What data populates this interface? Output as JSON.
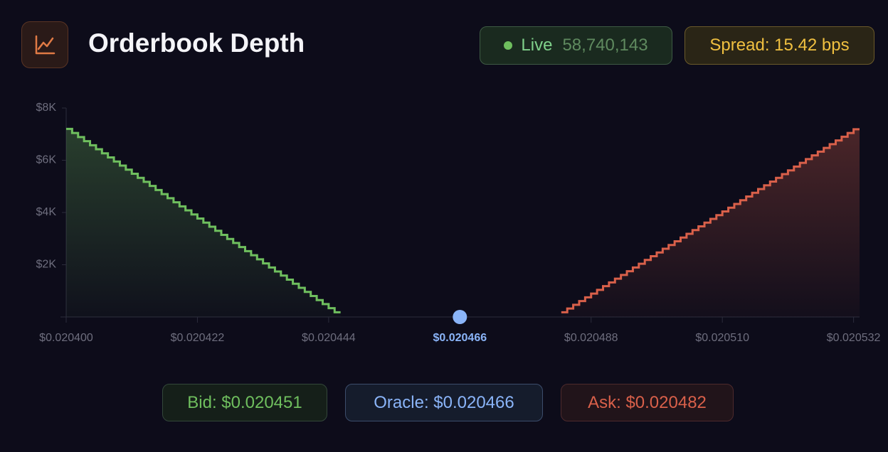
{
  "header": {
    "title": "Orderbook Depth",
    "live_label": "Live",
    "live_count": "58,740,143",
    "spread": "Spread: 15.42 bps"
  },
  "chart_data": {
    "type": "depth",
    "xlim": [
      0.0204,
      0.020533
    ],
    "xticks": [
      {
        "value": 0.0204,
        "label": "$0.020400"
      },
      {
        "value": 0.020422,
        "label": "$0.020422"
      },
      {
        "value": 0.020444,
        "label": "$0.020444"
      },
      {
        "value": 0.020466,
        "label": "$0.020466"
      },
      {
        "value": 0.020488,
        "label": "$0.020488"
      },
      {
        "value": 0.02051,
        "label": "$0.020510"
      },
      {
        "value": 0.020532,
        "label": "$0.020532"
      }
    ],
    "highlight_tick": 3,
    "ylim": [
      0,
      8000
    ],
    "yticks": [
      {
        "value": 2000,
        "label": "$2K"
      },
      {
        "value": 4000,
        "label": "$4K"
      },
      {
        "value": 6000,
        "label": "$6K"
      },
      {
        "value": 8000,
        "label": "$8K"
      }
    ],
    "oracle_price": 0.020466,
    "oracle_color": "#8ab4f8",
    "series": [
      {
        "name": "Bid",
        "color": "#6fbf5e",
        "side": "bid",
        "x": [
          0.0204,
          0.020401,
          0.020402,
          0.020403,
          0.020404,
          0.020405,
          0.020406,
          0.020407,
          0.020408,
          0.020409,
          0.02041,
          0.020411,
          0.020412,
          0.020413,
          0.020414,
          0.020415,
          0.020416,
          0.020417,
          0.020418,
          0.020419,
          0.02042,
          0.020421,
          0.020422,
          0.020423,
          0.020424,
          0.020425,
          0.020426,
          0.020427,
          0.020428,
          0.020429,
          0.02043,
          0.020431,
          0.020432,
          0.020433,
          0.020434,
          0.020435,
          0.020436,
          0.020437,
          0.020438,
          0.020439,
          0.02044,
          0.020441,
          0.020442,
          0.020443,
          0.020444,
          0.020445
        ],
        "values": [
          7200,
          7044,
          6888,
          6732,
          6576,
          6420,
          6264,
          6108,
          5952,
          5796,
          5640,
          5484,
          5328,
          5172,
          5016,
          4860,
          4704,
          4548,
          4392,
          4236,
          4080,
          3924,
          3768,
          3612,
          3456,
          3300,
          3144,
          2988,
          2832,
          2676,
          2520,
          2364,
          2208,
          2052,
          1896,
          1740,
          1584,
          1428,
          1272,
          1116,
          960,
          804,
          648,
          492,
          336,
          180
        ]
      },
      {
        "name": "Ask",
        "color": "#d9604a",
        "side": "ask",
        "x": [
          0.020483,
          0.020484,
          0.020485,
          0.020486,
          0.020487,
          0.020488,
          0.020489,
          0.02049,
          0.020491,
          0.020492,
          0.020493,
          0.020494,
          0.020495,
          0.020496,
          0.020497,
          0.020498,
          0.020499,
          0.0205,
          0.020501,
          0.020502,
          0.020503,
          0.020504,
          0.020505,
          0.020506,
          0.020507,
          0.020508,
          0.020509,
          0.02051,
          0.020511,
          0.020512,
          0.020513,
          0.020514,
          0.020515,
          0.020516,
          0.020517,
          0.020518,
          0.020519,
          0.02052,
          0.020521,
          0.020522,
          0.020523,
          0.020524,
          0.020525,
          0.020526,
          0.020527,
          0.020528,
          0.020529,
          0.02053,
          0.020531,
          0.020532
        ],
        "values": [
          180,
          323,
          466,
          609,
          752,
          895,
          1038,
          1181,
          1324,
          1467,
          1610,
          1753,
          1896,
          2039,
          2182,
          2325,
          2468,
          2611,
          2754,
          2897,
          3040,
          3183,
          3326,
          3469,
          3612,
          3755,
          3898,
          4041,
          4184,
          4327,
          4470,
          4613,
          4756,
          4899,
          5042,
          5185,
          5328,
          5471,
          5614,
          5757,
          5900,
          6043,
          6186,
          6329,
          6472,
          6615,
          6758,
          6901,
          7044,
          7187
        ]
      }
    ]
  },
  "footer": {
    "bid": "Bid: $0.020451",
    "oracle": "Oracle: $0.020466",
    "ask": "Ask: $0.020482"
  }
}
